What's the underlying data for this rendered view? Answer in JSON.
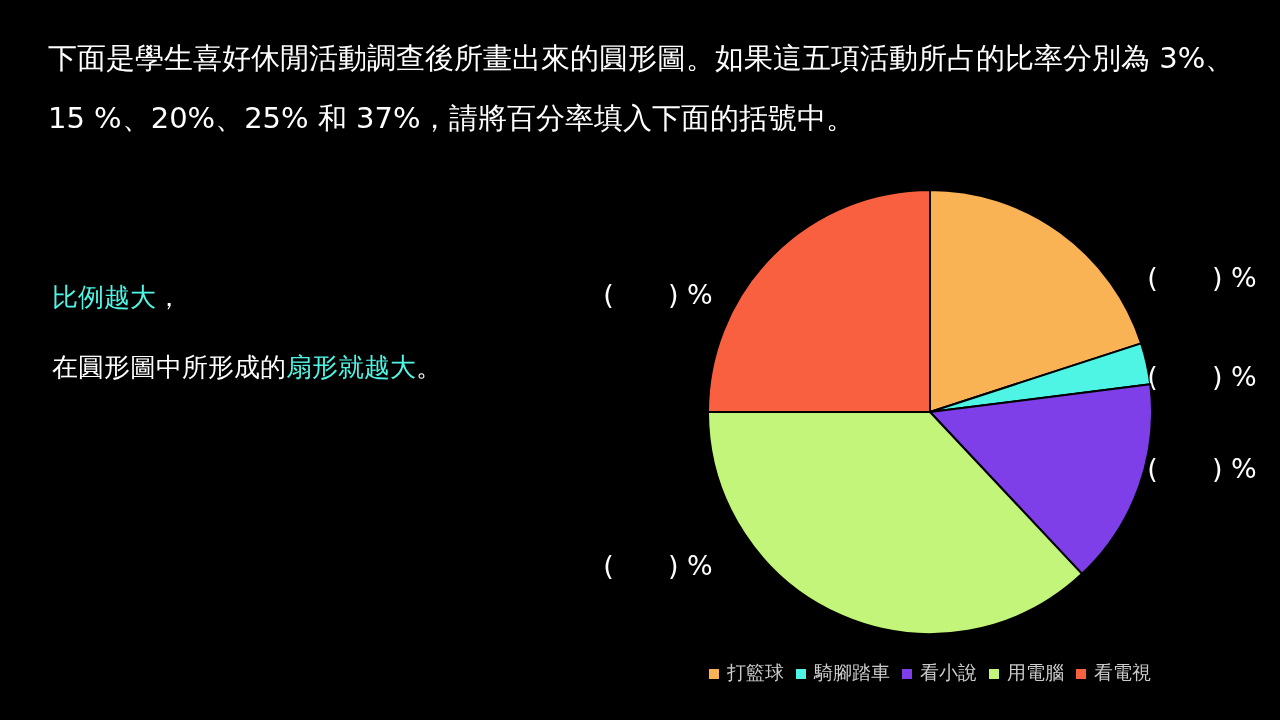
{
  "chart_data": {
    "type": "pie",
    "title": "下面是學生喜好休閒活動調查後所畫出來的圓形圖。如果這五項活動所占的比率分別為 3%、15 %、20%、25% 和 37%，請將百分率填入下面的括號中。",
    "categories": [
      "打籃球",
      "騎腳踏車",
      "看小說",
      "用電腦",
      "看電視"
    ],
    "values": [
      20,
      3,
      15,
      37,
      25
    ],
    "colors": [
      "#f9b254",
      "#4ff5e4",
      "#7f3fe8",
      "#c2f57a",
      "#f9603f"
    ],
    "legend": "bottom",
    "annotations": [
      "**比例越大**，",
      "在圓形圖中所形成的**扇形就越大**。",
      "(　　) %",
      "(　　) %",
      "(　　) %",
      "(　　) %",
      "(　　) %"
    ]
  }
}
